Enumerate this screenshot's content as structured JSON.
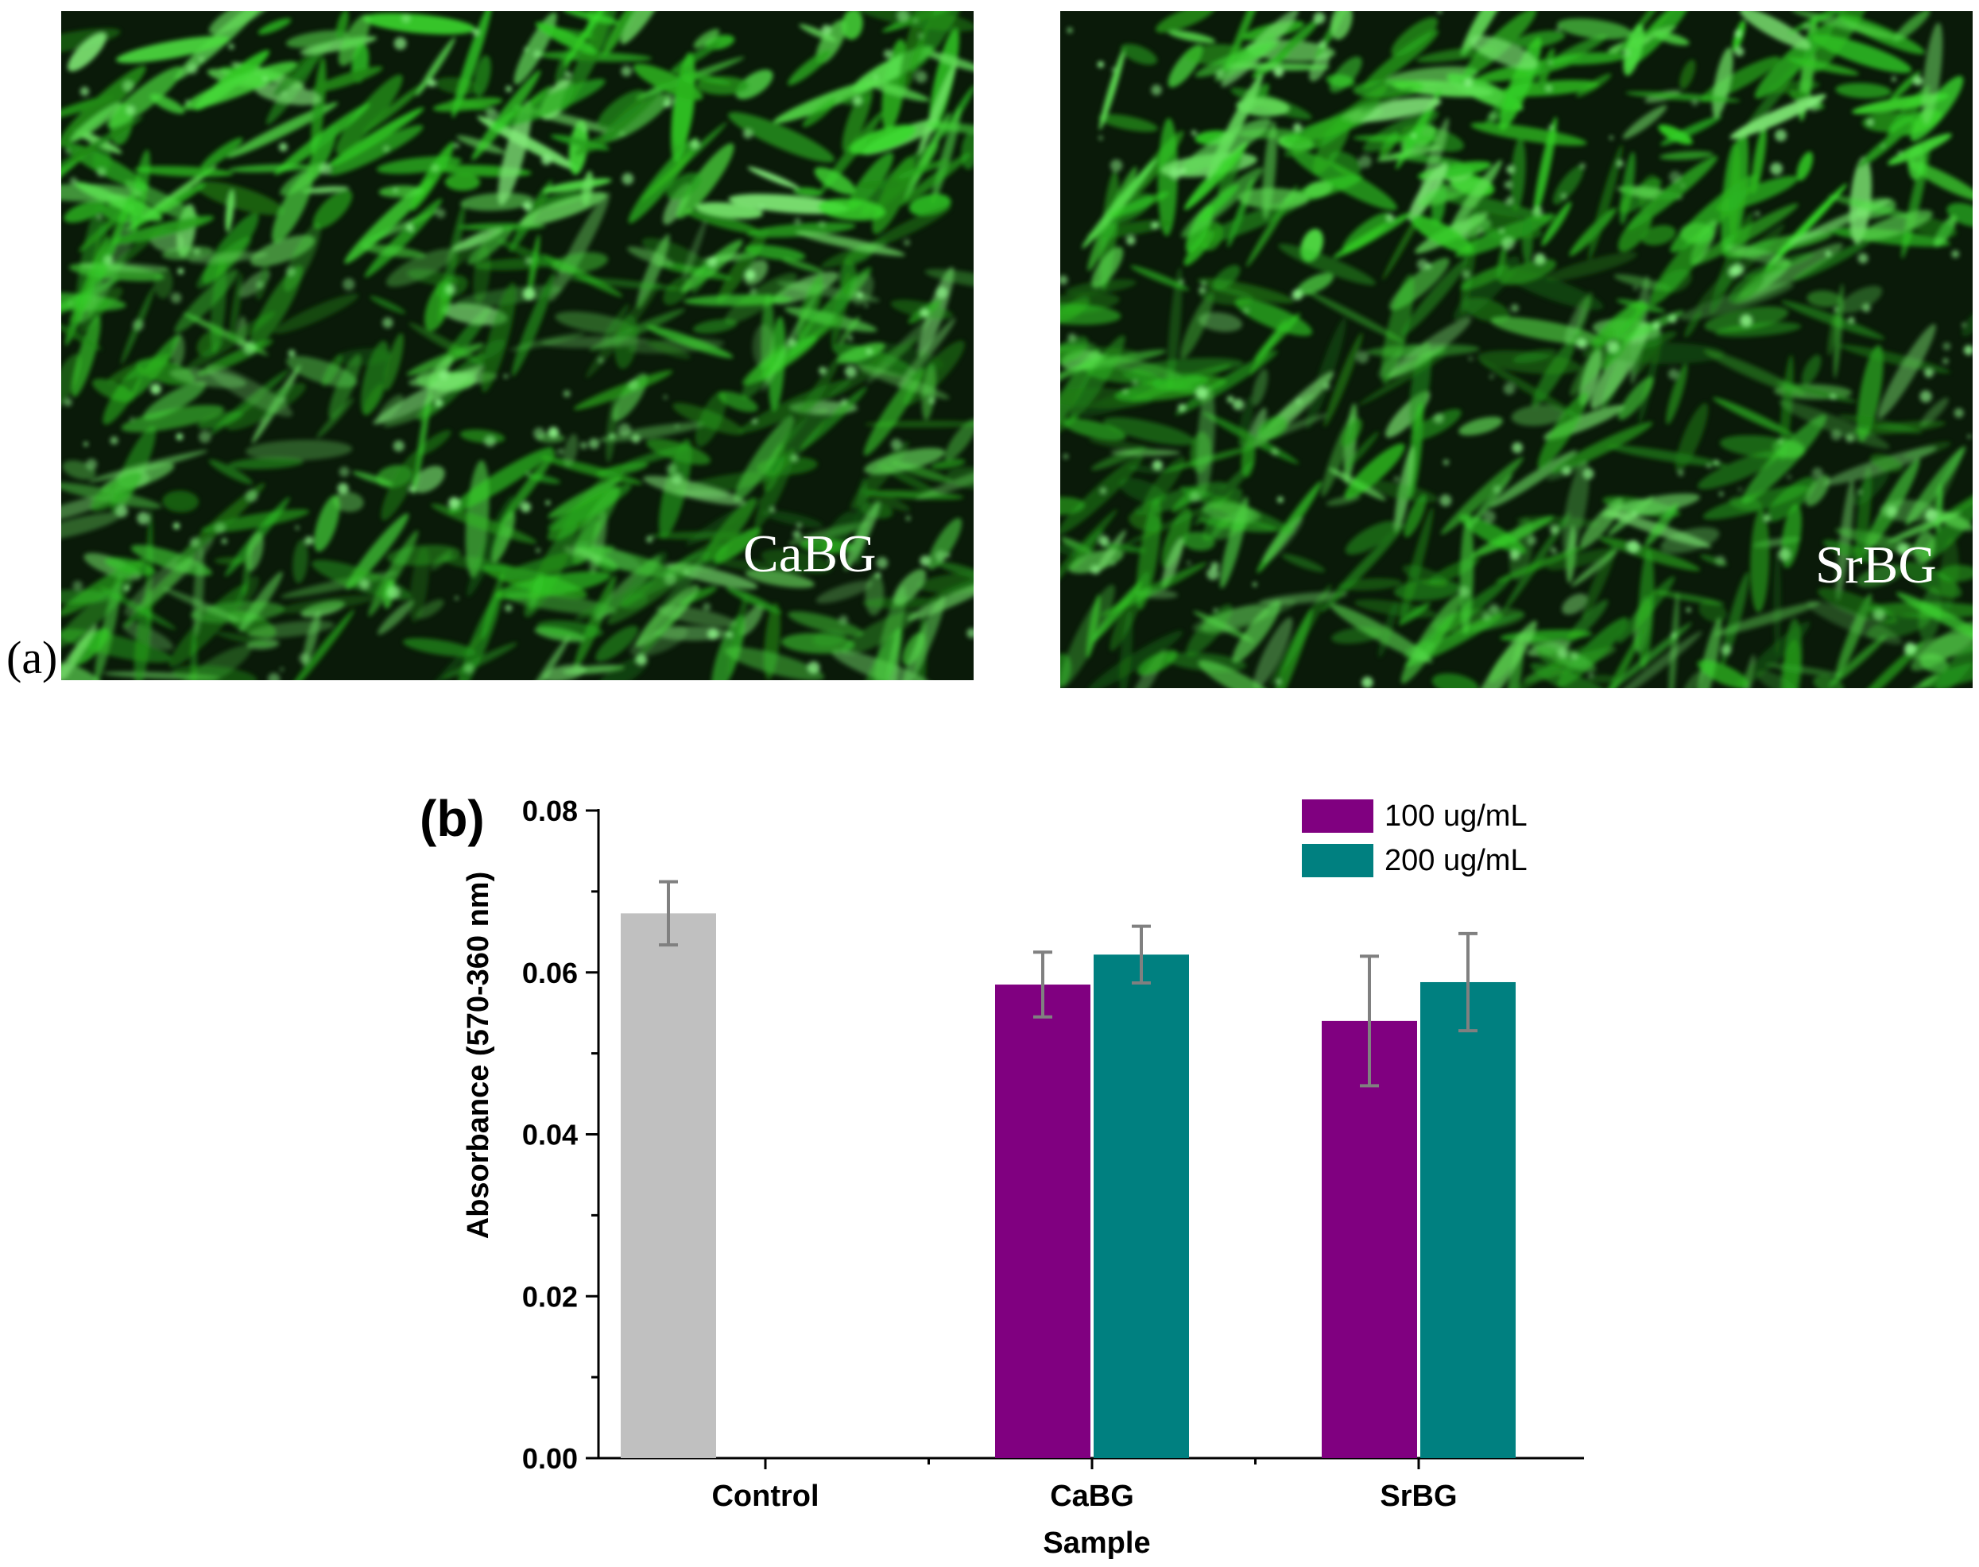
{
  "panel_a": {
    "tag": "(a)",
    "images": [
      {
        "label": "CaBG"
      },
      {
        "label": "SrBG"
      }
    ]
  },
  "chart_data": {
    "type": "bar",
    "panel_tag": "(b)",
    "categories": [
      "Control",
      "CaBG",
      "SrBG"
    ],
    "series": [
      {
        "name": "",
        "color": "#c0c0c0",
        "values": [
          0.0673,
          null,
          null
        ],
        "errors": [
          0.0039,
          null,
          null
        ]
      },
      {
        "name": "100 ug/mL",
        "color": "#800080",
        "values": [
          null,
          0.0585,
          0.054
        ],
        "errors": [
          null,
          0.004,
          0.008
        ]
      },
      {
        "name": "200 ug/mL",
        "color": "#008080",
        "values": [
          null,
          0.0622,
          0.0588
        ],
        "errors": [
          null,
          0.0035,
          0.006
        ]
      }
    ],
    "xlabel": "Sample",
    "ylabel": "Absorbance (570-360 nm)",
    "ylim": [
      0,
      0.08
    ],
    "yticks": [
      "0.00",
      "0.02",
      "0.04",
      "0.06",
      "0.08"
    ],
    "legend_placement": "top-right",
    "grid": false
  }
}
